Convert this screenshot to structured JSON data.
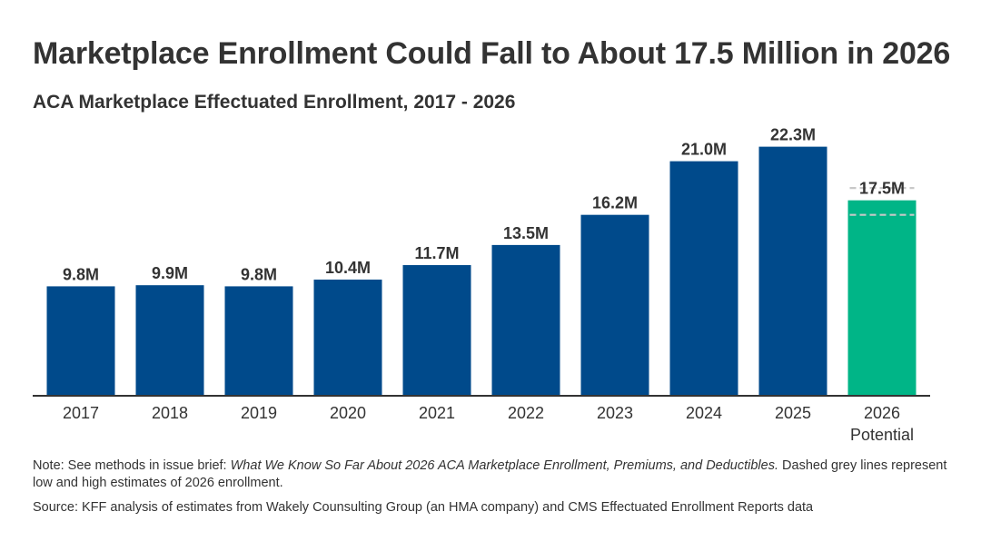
{
  "title": "Marketplace Enrollment Could Fall to About 17.5 Million in 2026",
  "subtitle": "ACA Marketplace Effectuated Enrollment, 2017 - 2026",
  "note": {
    "prefix": "Note: See methods in issue brief: ",
    "italic": "What We Know So Far About 2026 ACA Marketplace Enrollment, Premiums, and Deductibles.",
    "suffix": " Dashed grey lines represent low and high estimates of 2026 enrollment."
  },
  "source": "Source: KFF analysis of estimates from Wakely Counsulting Group (an HMA company) and CMS Effectuated Enrollment Reports data",
  "colors": {
    "actual": "#004a8b",
    "potential": "#00b587",
    "estimate_lines": "#c8c8c8",
    "axis": "#333333"
  },
  "chart_data": {
    "type": "bar",
    "title": "Marketplace Enrollment Could Fall to About 17.5 Million in 2026",
    "subtitle": "ACA Marketplace Effectuated Enrollment, 2017 - 2026",
    "xlabel": "",
    "ylabel": "",
    "categories": [
      "2017",
      "2018",
      "2019",
      "2020",
      "2021",
      "2022",
      "2023",
      "2024",
      "2025",
      "2026"
    ],
    "category_sublabels": [
      "",
      "",
      "",
      "",
      "",
      "",
      "",
      "",
      "",
      "Potential"
    ],
    "values": [
      9.8,
      9.9,
      9.8,
      10.4,
      11.7,
      13.5,
      16.2,
      21.0,
      22.3,
      17.5
    ],
    "value_labels": [
      "9.8M",
      "9.9M",
      "9.8M",
      "10.4M",
      "11.7M",
      "13.5M",
      "16.2M",
      "21.0M",
      "22.3M",
      "17.5M"
    ],
    "unit": "M",
    "bar_kind": [
      "actual",
      "actual",
      "actual",
      "actual",
      "actual",
      "actual",
      "actual",
      "actual",
      "actual",
      "potential"
    ],
    "estimate_range_2026": [
      16.2,
      18.6
    ],
    "ylim": [
      0,
      23
    ],
    "grid": false,
    "legend": "none"
  }
}
